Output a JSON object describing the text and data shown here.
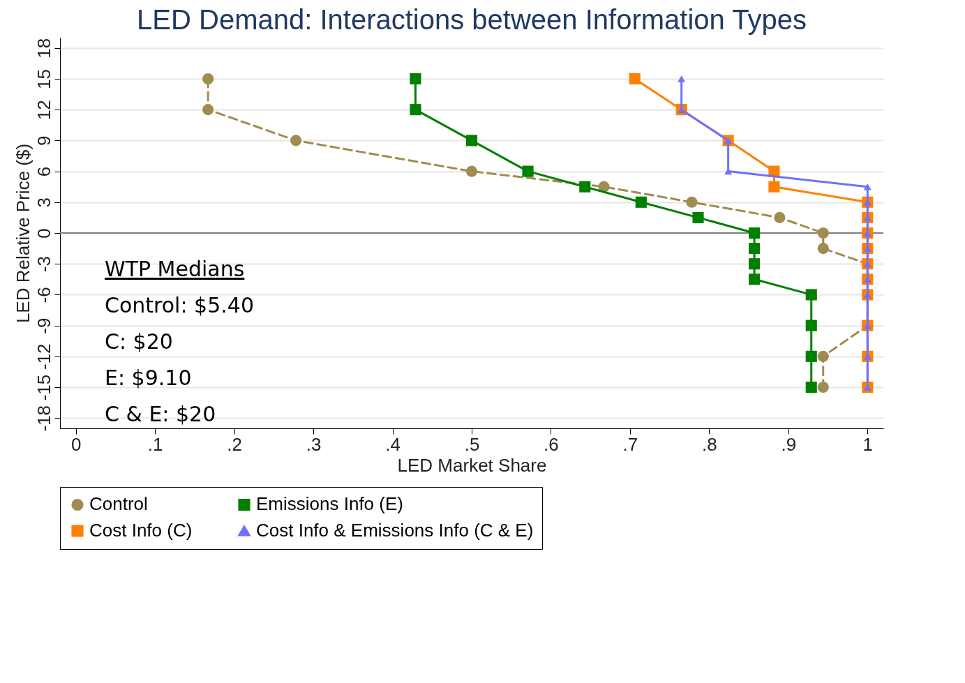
{
  "chart_data": {
    "type": "line",
    "title": "LED Demand: Interactions between Information Types",
    "xlabel": "LED Market Share",
    "ylabel": "LED Relative Price ($)",
    "xlim": [
      -0.02,
      1.02
    ],
    "xticks": [
      {
        "value": 0,
        "label": "0"
      },
      {
        "value": 0.1,
        "label": ".1"
      },
      {
        "value": 0.2,
        "label": ".2"
      },
      {
        "value": 0.3,
        "label": ".3"
      },
      {
        "value": 0.4,
        "label": ".4"
      },
      {
        "value": 0.5,
        "label": ".5"
      },
      {
        "value": 0.6,
        "label": ".6"
      },
      {
        "value": 0.7,
        "label": ".7"
      },
      {
        "value": 0.8,
        "label": ".8"
      },
      {
        "value": 0.9,
        "label": ".9"
      },
      {
        "value": 1,
        "label": "1"
      }
    ],
    "ylim": [
      -19,
      19
    ],
    "yticks": [
      -18,
      -15,
      -12,
      -9,
      -6,
      -3,
      0,
      3,
      6,
      9,
      12,
      15,
      18
    ],
    "grid": "y",
    "legend": "bottom",
    "ref_lines": [
      {
        "axis": "y",
        "value": 0,
        "color": "#808080"
      }
    ],
    "series": [
      {
        "name": "Control",
        "color": "#a08c50",
        "marker": "circle",
        "line_style": "dashed",
        "x": [
          0.167,
          0.167,
          0.278,
          0.5,
          0.667,
          0.778,
          0.889,
          0.944,
          0.944,
          1,
          1,
          1,
          1,
          0.944,
          0.944
        ],
        "values": [
          15,
          12,
          9,
          6,
          4.5,
          3,
          1.5,
          0,
          -1.5,
          -3,
          -4.5,
          -6,
          -9,
          -12,
          -15
        ]
      },
      {
        "name": "Emissions Info (E)",
        "color": "#008000",
        "marker": "square",
        "line_style": "solid",
        "x": [
          0.429,
          0.429,
          0.5,
          0.571,
          0.643,
          0.714,
          0.786,
          0.857,
          0.857,
          0.857,
          0.857,
          0.929,
          0.929,
          0.929,
          0.929
        ],
        "values": [
          15,
          12,
          9,
          6,
          4.5,
          3,
          1.5,
          0,
          -1.5,
          -3,
          -4.5,
          -6,
          -9,
          -12,
          -15
        ]
      },
      {
        "name": "Cost Info (C)",
        "color": "#ff8000",
        "marker": "square",
        "line_style": "solid",
        "x": [
          0.706,
          0.765,
          0.824,
          0.882,
          0.882,
          1,
          1,
          1,
          1,
          1,
          1,
          1,
          1,
          1,
          1
        ],
        "values": [
          15,
          12,
          9,
          6,
          4.5,
          3,
          1.5,
          0,
          -1.5,
          -3,
          -4.5,
          -6,
          -9,
          -12,
          -15
        ]
      },
      {
        "name": "Cost Info & Emissions Info (C & E)",
        "color": "#7070ff",
        "marker": "triangle",
        "line_style": "solid",
        "x": [
          0.765,
          0.765,
          0.824,
          0.824,
          1,
          1,
          1,
          1,
          1,
          1,
          1,
          1,
          1,
          1,
          1
        ],
        "values": [
          15,
          12,
          9,
          6,
          4.5,
          3,
          1.5,
          0,
          -1.5,
          -3,
          -4.5,
          -6,
          -9,
          -12,
          -15
        ]
      }
    ],
    "annotations": [
      "WTP Medians",
      "Control: $5.40",
      "C: $20",
      "E: $9.10",
      "C  & E: $20"
    ]
  }
}
